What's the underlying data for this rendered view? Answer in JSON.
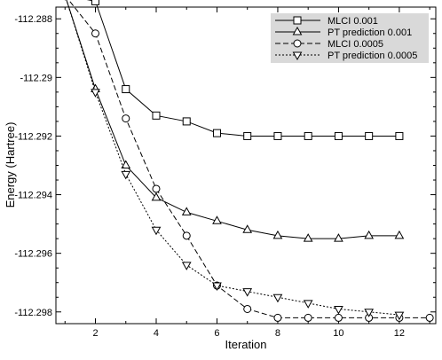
{
  "chart_data": {
    "type": "line",
    "xlabel": "Iteration",
    "ylabel": "Energy (Hartree)",
    "xlim": [
      0.7,
      13.2
    ],
    "ylim": [
      -112.2984,
      -112.2876
    ],
    "xticks": [
      2,
      4,
      6,
      8,
      10,
      12
    ],
    "xtick_labels": [
      "2",
      "4",
      "6",
      "8",
      "10",
      "12"
    ],
    "yticks": [
      -112.288,
      -112.29,
      -112.292,
      -112.294,
      -112.296,
      -112.298
    ],
    "ytick_labels": [
      "-112.288",
      "-112.29",
      "-112.292",
      "-112.294",
      "-112.296",
      "-112.298"
    ],
    "grid": false,
    "legend_position": "top-right",
    "series": [
      {
        "name": "MLCI 0.001",
        "marker": "square",
        "line_style": "solid",
        "x": [
          1,
          2,
          3,
          4,
          5,
          6,
          7,
          8,
          9,
          10,
          11,
          12
        ],
        "y": [
          -112.2872,
          -112.2874,
          -112.2904,
          -112.2913,
          -112.2915,
          -112.2919,
          -112.292,
          -112.292,
          -112.292,
          -112.292,
          -112.292,
          -112.292
        ]
      },
      {
        "name": "PT prediction 0.001",
        "marker": "triangle-up",
        "line_style": "solid",
        "x": [
          1,
          2,
          3,
          4,
          5,
          6,
          7,
          8,
          9,
          10,
          11,
          12
        ],
        "y": [
          -112.2872,
          -112.2904,
          -112.293,
          -112.2941,
          -112.2946,
          -112.2949,
          -112.2952,
          -112.2954,
          -112.2955,
          -112.2955,
          -112.2954,
          -112.2954
        ]
      },
      {
        "name": "MLCI 0.0005",
        "marker": "circle",
        "line_style": "dashed",
        "x": [
          1,
          2,
          3,
          4,
          5,
          6,
          7,
          8,
          9,
          10,
          11,
          12,
          13
        ],
        "y": [
          -112.2872,
          -112.2885,
          -112.2914,
          -112.2938,
          -112.2954,
          -112.2971,
          -112.2979,
          -112.2982,
          -112.2982,
          -112.2982,
          -112.2982,
          -112.2982,
          -112.2982
        ]
      },
      {
        "name": "PT prediction 0.0005",
        "marker": "triangle-down",
        "line_style": "dotted",
        "x": [
          1,
          2,
          3,
          4,
          5,
          6,
          7,
          8,
          9,
          10,
          11,
          12
        ],
        "y": [
          -112.2872,
          -112.2905,
          -112.2933,
          -112.2952,
          -112.2964,
          -112.2971,
          -112.2973,
          -112.2975,
          -112.2977,
          -112.2979,
          -112.298,
          -112.2981
        ]
      }
    ]
  }
}
